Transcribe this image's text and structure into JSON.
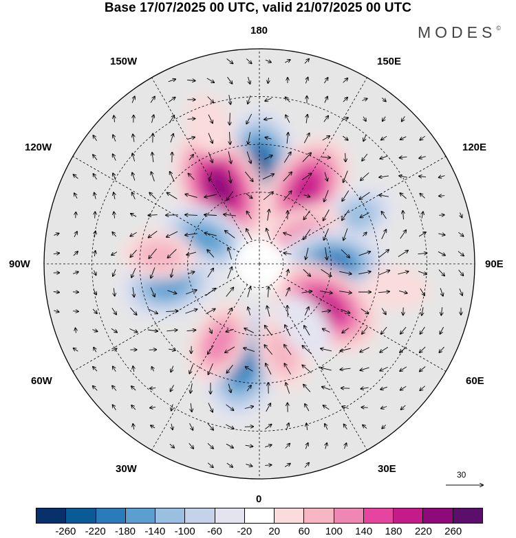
{
  "title": "Base 17/07/2025 00 UTC, valid 21/07/2025 00 UTC",
  "logo": "MODES",
  "logo_mark": "©",
  "longitude_labels": {
    "top": "180",
    "bottom": "0",
    "left": "90W",
    "right": "90E",
    "upper_left": "150W",
    "upper_right": "150E",
    "mid_upper_left": "120W",
    "mid_upper_right": "120E",
    "mid_lower_left": "60W",
    "mid_lower_right": "60E",
    "lower_left": "30W",
    "lower_right": "30E"
  },
  "reference_vector": {
    "label": "30"
  },
  "colorbar": {
    "colors": [
      "#08306b",
      "#0a5a96",
      "#2b7bba",
      "#5a9fd0",
      "#9ac0e1",
      "#c5d3ea",
      "#e4e4f1",
      "#ffffff",
      "#fbdcdc",
      "#f6b6c3",
      "#ef86b4",
      "#e6459f",
      "#c51b8a",
      "#8e0a7a",
      "#5b0f6b"
    ],
    "tick_labels": [
      "-260",
      "-220",
      "-180",
      "-140",
      "-100",
      "-60",
      "-20",
      "20",
      "60",
      "100",
      "140",
      "180",
      "220",
      "260"
    ]
  },
  "anomaly_centers": [
    {
      "lon_deg": 180,
      "colat_deg": 40,
      "value": -240
    },
    {
      "lon_deg": 207,
      "colat_deg": 36,
      "value": 250
    },
    {
      "lon_deg": 148,
      "colat_deg": 37,
      "value": 210
    },
    {
      "lon_deg": 116,
      "colat_deg": 45,
      "value": -120
    },
    {
      "lon_deg": 120,
      "colat_deg": 20,
      "value": 150
    },
    {
      "lon_deg": 90,
      "colat_deg": 31,
      "value": -200
    },
    {
      "lon_deg": 57,
      "colat_deg": 33,
      "value": 220
    },
    {
      "lon_deg": 350,
      "colat_deg": 42,
      "value": -230
    },
    {
      "lon_deg": 15,
      "colat_deg": 38,
      "value": 100
    },
    {
      "lon_deg": 333,
      "colat_deg": 37,
      "value": 120
    },
    {
      "lon_deg": 245,
      "colat_deg": 25,
      "value": -160
    },
    {
      "lon_deg": 283,
      "colat_deg": 39,
      "value": -180
    },
    {
      "lon_deg": 265,
      "colat_deg": 42,
      "value": 90
    },
    {
      "lon_deg": 36,
      "colat_deg": 32,
      "value": -70
    },
    {
      "lon_deg": 80,
      "colat_deg": 58,
      "value": 60
    },
    {
      "lon_deg": 200,
      "colat_deg": 62,
      "value": 60
    }
  ]
}
